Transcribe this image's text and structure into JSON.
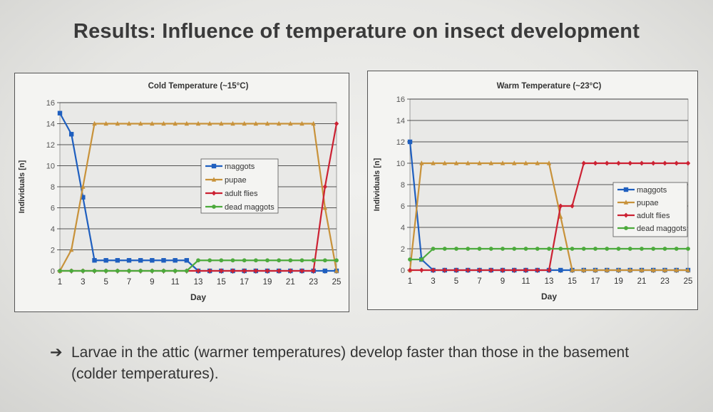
{
  "slide": {
    "title": "Results: Influence of temperature on insect development",
    "conclusion_arrow": "➔",
    "conclusion": "Larvae in the attic (warmer temperatures) develop faster than those in the basement (colder temperatures)."
  },
  "chart_data": [
    {
      "type": "line",
      "title": "Cold Temperature (~15°C)",
      "xlabel": "Day",
      "ylabel": "Individuals [n]",
      "xlim": [
        1,
        25
      ],
      "ylim": [
        0,
        16
      ],
      "xticks": [
        1,
        3,
        5,
        7,
        9,
        11,
        13,
        15,
        17,
        19,
        21,
        23,
        25
      ],
      "yticks": [
        0,
        2,
        4,
        6,
        8,
        10,
        12,
        14,
        16
      ],
      "grid": true,
      "legend": "center-right",
      "x": [
        1,
        2,
        3,
        4,
        5,
        6,
        7,
        8,
        9,
        10,
        11,
        12,
        13,
        14,
        15,
        16,
        17,
        18,
        19,
        20,
        21,
        22,
        23,
        24,
        25
      ],
      "series": [
        {
          "name": "maggots",
          "color": "#1f5fbf",
          "marker": "square",
          "values": [
            15,
            13,
            7,
            1,
            1,
            1,
            1,
            1,
            1,
            1,
            1,
            1,
            0,
            0,
            0,
            0,
            0,
            0,
            0,
            0,
            0,
            0,
            0,
            0,
            0
          ]
        },
        {
          "name": "pupae",
          "color": "#c8923a",
          "marker": "triangle",
          "values": [
            0,
            2,
            8,
            14,
            14,
            14,
            14,
            14,
            14,
            14,
            14,
            14,
            14,
            14,
            14,
            14,
            14,
            14,
            14,
            14,
            14,
            14,
            14,
            6,
            0
          ]
        },
        {
          "name": "adult flies",
          "color": "#cc2233",
          "marker": "diamond",
          "values": [
            0,
            0,
            0,
            0,
            0,
            0,
            0,
            0,
            0,
            0,
            0,
            0,
            0,
            0,
            0,
            0,
            0,
            0,
            0,
            0,
            0,
            0,
            0,
            8,
            14
          ]
        },
        {
          "name": "dead maggots",
          "color": "#4caa3c",
          "marker": "circle",
          "values": [
            0,
            0,
            0,
            0,
            0,
            0,
            0,
            0,
            0,
            0,
            0,
            0,
            1,
            1,
            1,
            1,
            1,
            1,
            1,
            1,
            1,
            1,
            1,
            1,
            1
          ]
        }
      ]
    },
    {
      "type": "line",
      "title": "Warm Temperature (~23°C)",
      "xlabel": "Day",
      "ylabel": "Individuals [n]",
      "xlim": [
        1,
        25
      ],
      "ylim": [
        0,
        16
      ],
      "xticks": [
        1,
        3,
        5,
        7,
        9,
        11,
        13,
        15,
        17,
        19,
        21,
        23,
        25
      ],
      "yticks": [
        0,
        2,
        4,
        6,
        8,
        10,
        12,
        14,
        16
      ],
      "grid": true,
      "legend": "right",
      "x": [
        1,
        2,
        3,
        4,
        5,
        6,
        7,
        8,
        9,
        10,
        11,
        12,
        13,
        14,
        15,
        16,
        17,
        18,
        19,
        20,
        21,
        22,
        23,
        24,
        25
      ],
      "series": [
        {
          "name": "maggots",
          "color": "#1f5fbf",
          "marker": "square",
          "values": [
            12,
            1,
            0,
            0,
            0,
            0,
            0,
            0,
            0,
            0,
            0,
            0,
            0,
            0,
            0,
            0,
            0,
            0,
            0,
            0,
            0,
            0,
            0,
            0,
            0
          ]
        },
        {
          "name": "pupae",
          "color": "#c8923a",
          "marker": "triangle",
          "values": [
            0,
            10,
            10,
            10,
            10,
            10,
            10,
            10,
            10,
            10,
            10,
            10,
            10,
            5,
            0,
            0,
            0,
            0,
            0,
            0,
            0,
            0,
            0,
            0,
            0
          ]
        },
        {
          "name": "adult flies",
          "color": "#cc2233",
          "marker": "diamond",
          "values": [
            0,
            0,
            0,
            0,
            0,
            0,
            0,
            0,
            0,
            0,
            0,
            0,
            0,
            6,
            6,
            10,
            10,
            10,
            10,
            10,
            10,
            10,
            10,
            10,
            10
          ]
        },
        {
          "name": "dead maggots",
          "color": "#4caa3c",
          "marker": "circle",
          "values": [
            1,
            1,
            2,
            2,
            2,
            2,
            2,
            2,
            2,
            2,
            2,
            2,
            2,
            2,
            2,
            2,
            2,
            2,
            2,
            2,
            2,
            2,
            2,
            2,
            2
          ]
        }
      ]
    }
  ]
}
